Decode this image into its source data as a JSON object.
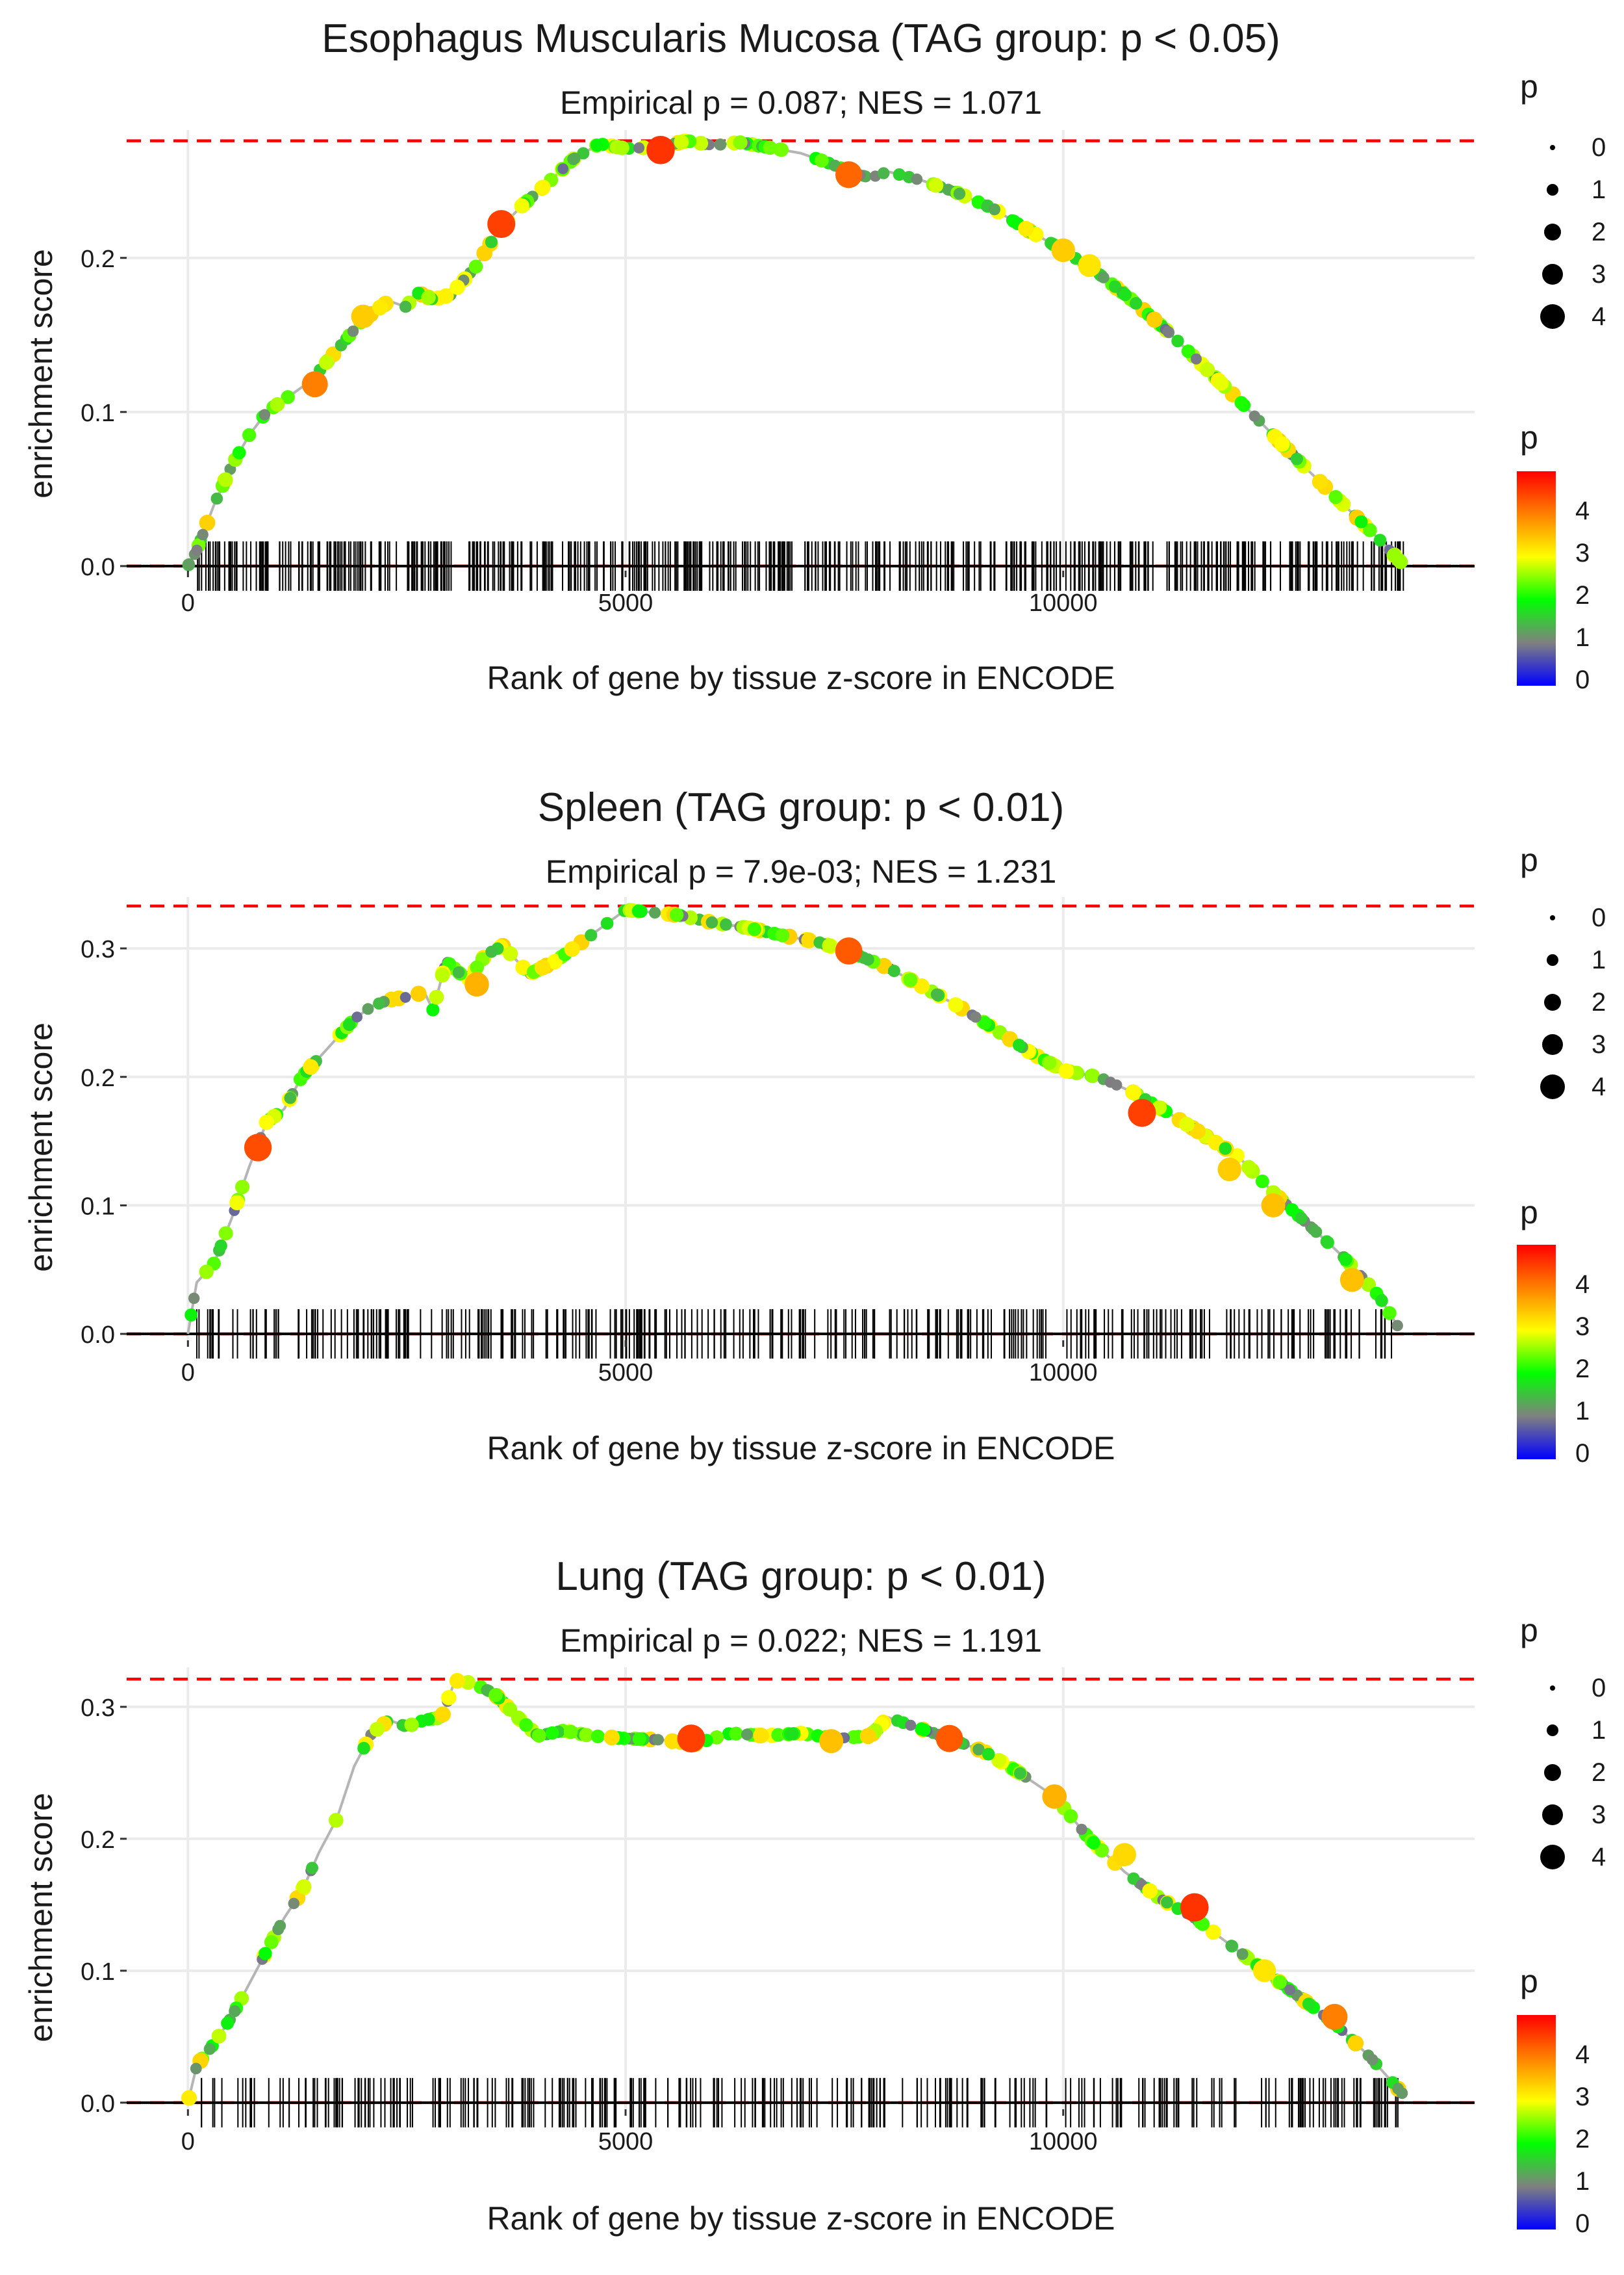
{
  "figure": {
    "type": "gsea-enrichment-panels",
    "panel_count": 3
  },
  "colors": {
    "threshold_line": "#ff0000",
    "zero_line": "#000000",
    "running_line": "#b5b5b5",
    "gridline": "#ebebeb",
    "rug": "#000000",
    "gradient": [
      "#0000ff",
      "#808080",
      "#00ff00",
      "#ffff00",
      "#ff8000",
      "#ff0000"
    ]
  },
  "chart_data": [
    {
      "type": "line",
      "title": "Esophagus Muscularis Mucosa (TAG group: p < 0.05)",
      "subtitle": "Empirical p = 0.087; NES = 1.071",
      "xlabel": "Rank of gene by tissue z-score in ENCODE",
      "ylabel": "enrichment score",
      "xlim": [
        -700,
        14700
      ],
      "ylim": [
        -0.003,
        0.283
      ],
      "x_ticks": [
        0,
        5000,
        10000
      ],
      "x_tick_labels": [
        "0",
        "5000",
        "10000"
      ],
      "y_ticks": [
        0.0,
        0.1,
        0.2
      ],
      "y_tick_labels": [
        "0.0",
        "0.1",
        "0.2"
      ],
      "max_es": 0.276,
      "curve": {
        "x": [
          0,
          100,
          300,
          500,
          700,
          900,
          1200,
          1400,
          1700,
          2000,
          2300,
          2500,
          2600,
          2800,
          3000,
          3300,
          3550,
          3800,
          4100,
          4400,
          4700,
          5000,
          5400,
          5700,
          6000,
          6300,
          6600,
          7000,
          7300,
          7600,
          7800,
          8000,
          8400,
          8800,
          9200,
          9600,
          10000,
          10400,
          10800,
          11200,
          11600,
          12000,
          12400,
          12800,
          13200,
          13600,
          13900
        ],
        "y": [
          0.0,
          0.01,
          0.04,
          0.065,
          0.085,
          0.1,
          0.112,
          0.12,
          0.14,
          0.16,
          0.172,
          0.168,
          0.178,
          0.173,
          0.176,
          0.195,
          0.218,
          0.233,
          0.248,
          0.264,
          0.274,
          0.271,
          0.272,
          0.276,
          0.273,
          0.275,
          0.272,
          0.268,
          0.262,
          0.255,
          0.252,
          0.256,
          0.25,
          0.242,
          0.232,
          0.218,
          0.205,
          0.19,
          0.172,
          0.152,
          0.13,
          0.108,
          0.085,
          0.062,
          0.04,
          0.018,
          0.0
        ]
      },
      "highlight_points": [
        {
          "x": 1450,
          "y": 0.118,
          "p": 4
        },
        {
          "x": 2000,
          "y": 0.162,
          "p": 3.4
        },
        {
          "x": 3580,
          "y": 0.222,
          "p": 4.5
        },
        {
          "x": 5400,
          "y": 0.27,
          "p": 4.6
        },
        {
          "x": 7550,
          "y": 0.254,
          "p": 4.2
        },
        {
          "x": 10000,
          "y": 0.205,
          "p": 3.4
        },
        {
          "x": 10300,
          "y": 0.195,
          "p": 3.2
        }
      ],
      "rug": {
        "min": 100,
        "max": 13900,
        "count": 520,
        "seed": 7
      },
      "legend_size": {
        "title": "p",
        "values": [
          "0",
          "1",
          "2",
          "3",
          "4"
        ]
      },
      "legend_color": {
        "title": "p",
        "ticks": [
          "0",
          "1",
          "2",
          "3",
          "4"
        ]
      }
    },
    {
      "type": "line",
      "title": "Spleen (TAG group: p < 0.01)",
      "subtitle": "Empirical p = 7.9e-03; NES = 1.231",
      "xlabel": "Rank of gene by tissue z-score in ENCODE",
      "ylabel": "enrichment score",
      "xlim": [
        -700,
        14700
      ],
      "ylim": [
        -0.005,
        0.34
      ],
      "x_ticks": [
        0,
        5000,
        10000
      ],
      "x_tick_labels": [
        "0",
        "5000",
        "10000"
      ],
      "y_ticks": [
        0.0,
        0.1,
        0.2,
        0.3
      ],
      "y_tick_labels": [
        "0.0",
        "0.1",
        "0.2",
        "0.3"
      ],
      "max_es": 0.333,
      "curve": {
        "x": [
          0,
          100,
          300,
          500,
          700,
          900,
          1100,
          1300,
          1500,
          1700,
          1900,
          2100,
          2300,
          2500,
          2700,
          2800,
          2950,
          3200,
          3400,
          3600,
          3900,
          4200,
          4400,
          4700,
          5000,
          5300,
          5600,
          6000,
          6400,
          6800,
          7200,
          7600,
          8000,
          8400,
          8800,
          9200,
          9600,
          10000,
          10400,
          10800,
          11200,
          11600,
          12000,
          12400,
          12800,
          13200,
          13600,
          13850
        ],
        "y": [
          0.0,
          0.04,
          0.055,
          0.09,
          0.13,
          0.165,
          0.175,
          0.2,
          0.215,
          0.23,
          0.245,
          0.255,
          0.26,
          0.262,
          0.266,
          0.252,
          0.29,
          0.275,
          0.295,
          0.302,
          0.28,
          0.29,
          0.3,
          0.315,
          0.33,
          0.328,
          0.326,
          0.32,
          0.316,
          0.31,
          0.305,
          0.296,
          0.285,
          0.27,
          0.255,
          0.238,
          0.22,
          0.205,
          0.2,
          0.188,
          0.172,
          0.155,
          0.138,
          0.11,
          0.085,
          0.06,
          0.03,
          0.003
        ]
      },
      "highlight_points": [
        {
          "x": 800,
          "y": 0.145,
          "p": 4.4
        },
        {
          "x": 3300,
          "y": 0.272,
          "p": 3.6
        },
        {
          "x": 7550,
          "y": 0.298,
          "p": 4.3
        },
        {
          "x": 10900,
          "y": 0.172,
          "p": 4.5
        },
        {
          "x": 11900,
          "y": 0.128,
          "p": 3.4
        },
        {
          "x": 12400,
          "y": 0.1,
          "p": 3.5
        },
        {
          "x": 13300,
          "y": 0.042,
          "p": 3.5
        }
      ],
      "rug": {
        "min": 100,
        "max": 13800,
        "count": 330,
        "seed": 19
      },
      "legend_size": {
        "title": "p",
        "values": [
          "0",
          "1",
          "2",
          "3",
          "4"
        ]
      },
      "legend_color": {
        "title": "p",
        "ticks": [
          "0",
          "1",
          "2",
          "3",
          "4"
        ]
      }
    },
    {
      "type": "line",
      "title": "Lung (TAG group: p < 0.01)",
      "subtitle": "Empirical p = 0.022; NES = 1.191",
      "xlabel": "Rank of gene by tissue z-score in ENCODE",
      "ylabel": "enrichment score",
      "xlim": [
        -700,
        14700
      ],
      "ylim": [
        -0.005,
        0.33
      ],
      "x_ticks": [
        0,
        5000,
        10000
      ],
      "x_tick_labels": [
        "0",
        "5000",
        "10000"
      ],
      "y_ticks": [
        0.0,
        0.1,
        0.2,
        0.3
      ],
      "y_tick_labels": [
        "0.0",
        "0.1",
        "0.2",
        "0.3"
      ],
      "max_es": 0.321,
      "curve": {
        "x": [
          0,
          100,
          300,
          500,
          700,
          900,
          1100,
          1300,
          1500,
          1700,
          1900,
          2100,
          2300,
          2500,
          2700,
          2900,
          3050,
          3250,
          3500,
          3800,
          4000,
          4300,
          4600,
          5000,
          5400,
          5800,
          6200,
          6600,
          7000,
          7400,
          7800,
          8000,
          8300,
          8700,
          9100,
          9500,
          9900,
          10300,
          10700,
          11100,
          11500,
          11900,
          12300,
          12700,
          13100,
          13500,
          13900
        ],
        "y": [
          0.0,
          0.028,
          0.045,
          0.065,
          0.09,
          0.115,
          0.14,
          0.16,
          0.19,
          0.215,
          0.255,
          0.28,
          0.29,
          0.285,
          0.29,
          0.292,
          0.32,
          0.318,
          0.31,
          0.29,
          0.278,
          0.282,
          0.278,
          0.276,
          0.275,
          0.272,
          0.28,
          0.278,
          0.28,
          0.276,
          0.278,
          0.292,
          0.285,
          0.276,
          0.266,
          0.25,
          0.232,
          0.2,
          0.175,
          0.155,
          0.14,
          0.12,
          0.1,
          0.08,
          0.06,
          0.035,
          0.005
        ]
      },
      "highlight_points": [
        {
          "x": 5750,
          "y": 0.276,
          "p": 4.5
        },
        {
          "x": 7350,
          "y": 0.274,
          "p": 3.5
        },
        {
          "x": 8700,
          "y": 0.276,
          "p": 4.3
        },
        {
          "x": 9900,
          "y": 0.232,
          "p": 3.6
        },
        {
          "x": 10700,
          "y": 0.188,
          "p": 3.3
        },
        {
          "x": 11500,
          "y": 0.148,
          "p": 4.6
        },
        {
          "x": 12300,
          "y": 0.1,
          "p": 3.2
        },
        {
          "x": 13100,
          "y": 0.065,
          "p": 4.0
        }
      ],
      "rug": {
        "min": 100,
        "max": 13850,
        "count": 300,
        "seed": 31
      },
      "legend_size": {
        "title": "p",
        "values": [
          "0",
          "1",
          "2",
          "3",
          "4"
        ]
      },
      "legend_color": {
        "title": "p",
        "ticks": [
          "0",
          "1",
          "2",
          "3",
          "4"
        ]
      }
    }
  ]
}
